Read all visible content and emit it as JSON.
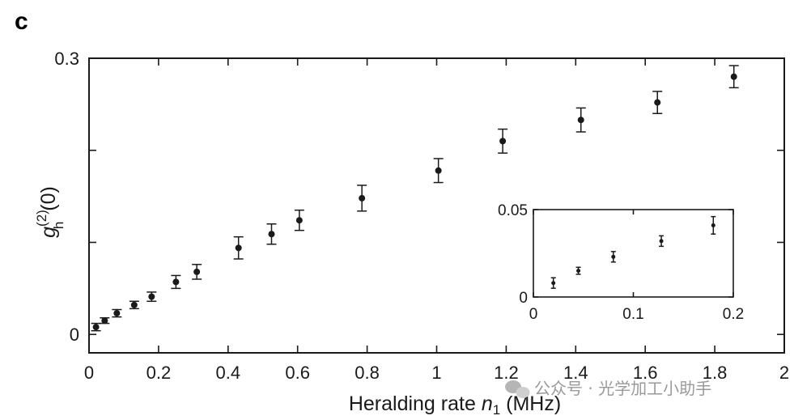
{
  "panel_label": "c",
  "watermark": "公众号 · 光学加工小助手",
  "chart_data": [
    {
      "name": "main",
      "type": "scatter",
      "title": "",
      "xlabel_prefix": "Heralding rate ",
      "xlabel_var": "n",
      "xlabel_sub": "1",
      "xlabel_suffix": " (MHz)",
      "ylabel_var": "g",
      "ylabel_sup": "(2)",
      "ylabel_sub": "h",
      "ylabel_suffix": "(0)",
      "xlim": [
        0,
        2
      ],
      "ylim": [
        -0.02,
        0.3
      ],
      "xticks": [
        0,
        0.2,
        0.4,
        0.6,
        0.8,
        1,
        1.2,
        1.4,
        1.6,
        1.8,
        2
      ],
      "xtick_labels": [
        "0",
        "0.2",
        "0.4",
        "0.6",
        "0.8",
        "1",
        "1.2",
        "1.4",
        "1.6",
        "1.8",
        "2"
      ],
      "yticks": [
        0,
        0.1,
        0.2,
        0.3
      ],
      "ytick_labels": [
        "0",
        "",
        "",
        "0.3"
      ],
      "points": [
        {
          "x": 0.02,
          "y": 0.008,
          "err": 0.004
        },
        {
          "x": 0.045,
          "y": 0.015,
          "err": 0.003
        },
        {
          "x": 0.08,
          "y": 0.023,
          "err": 0.004
        },
        {
          "x": 0.13,
          "y": 0.032,
          "err": 0.004
        },
        {
          "x": 0.18,
          "y": 0.041,
          "err": 0.005
        },
        {
          "x": 0.25,
          "y": 0.057,
          "err": 0.007
        },
        {
          "x": 0.31,
          "y": 0.068,
          "err": 0.008
        },
        {
          "x": 0.43,
          "y": 0.094,
          "err": 0.012
        },
        {
          "x": 0.525,
          "y": 0.109,
          "err": 0.011
        },
        {
          "x": 0.605,
          "y": 0.124,
          "err": 0.011
        },
        {
          "x": 0.785,
          "y": 0.148,
          "err": 0.014
        },
        {
          "x": 1.005,
          "y": 0.178,
          "err": 0.013
        },
        {
          "x": 1.19,
          "y": 0.21,
          "err": 0.013
        },
        {
          "x": 1.415,
          "y": 0.233,
          "err": 0.013
        },
        {
          "x": 1.635,
          "y": 0.252,
          "err": 0.012
        },
        {
          "x": 1.855,
          "y": 0.28,
          "err": 0.012
        }
      ]
    },
    {
      "name": "inset",
      "type": "scatter",
      "xlim": [
        0,
        0.2
      ],
      "ylim": [
        0,
        0.05
      ],
      "xticks": [
        0,
        0.1,
        0.2
      ],
      "xtick_labels": [
        "0",
        "0.1",
        "0.2"
      ],
      "yticks": [
        0,
        0.05
      ],
      "ytick_labels": [
        "0",
        "0.05"
      ],
      "points": [
        {
          "x": 0.02,
          "y": 0.008,
          "err": 0.003
        },
        {
          "x": 0.045,
          "y": 0.015,
          "err": 0.002
        },
        {
          "x": 0.08,
          "y": 0.023,
          "err": 0.003
        },
        {
          "x": 0.128,
          "y": 0.032,
          "err": 0.003
        },
        {
          "x": 0.18,
          "y": 0.041,
          "err": 0.005
        }
      ]
    }
  ]
}
